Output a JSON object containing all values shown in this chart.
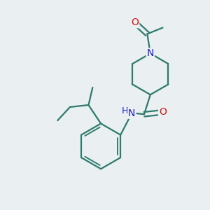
{
  "bg_color": "#eaeff1",
  "bond_color": "#2d7a6e",
  "atom_colors": {
    "N": "#1a1acc",
    "O": "#cc1a1a",
    "H": "#2d7a6e",
    "C": "#2d7a6e"
  },
  "bond_width": 1.6,
  "font_size_atom": 10,
  "fig_size": [
    3.0,
    3.0
  ],
  "dpi": 100
}
